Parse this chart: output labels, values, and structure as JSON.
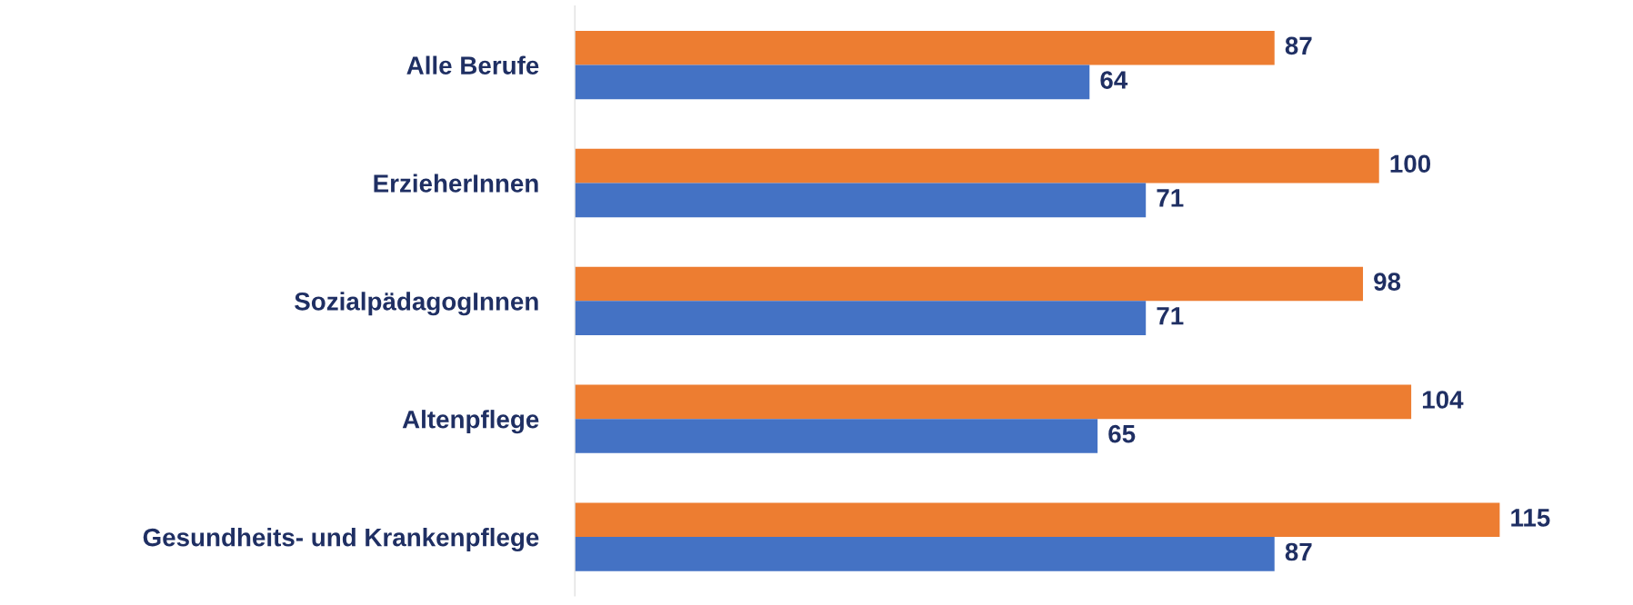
{
  "chart_data": {
    "type": "bar",
    "orientation": "horizontal",
    "categories": [
      "Alle Berufe",
      "ErzieherInnen",
      "SozialpädagogInnen",
      "Altenpflege",
      "Gesundheits- und Krankenpflege"
    ],
    "series": [
      {
        "color": "#ed7d31",
        "values": [
          87,
          100,
          98,
          104,
          115
        ]
      },
      {
        "color": "#4472c4",
        "values": [
          64,
          71,
          71,
          65,
          87
        ]
      }
    ],
    "data_labels": true,
    "grid": false,
    "legend": false,
    "tick_labels": "y"
  }
}
